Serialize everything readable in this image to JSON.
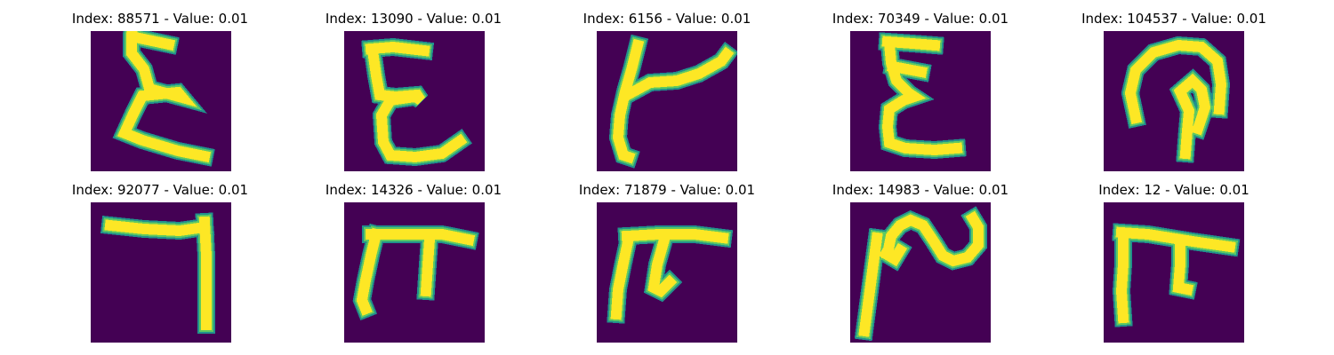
{
  "colors": {
    "background": "#440154",
    "edge": "#21918c",
    "mid": "#5ec962",
    "stroke": "#fde725"
  },
  "panels": [
    {
      "title": "Index: 88571 - Value: 0.01",
      "glyph": "epsilon-shape"
    },
    {
      "title": "Index: 13090 - Value: 0.01",
      "glyph": "epsilon-shape"
    },
    {
      "title": "Index: 6156 - Value: 0.01",
      "glyph": "k-like-shape"
    },
    {
      "title": "Index: 70349 - Value: 0.01",
      "glyph": "epsilon-shape"
    },
    {
      "title": "Index: 104537 - Value: 0.01",
      "glyph": "loop-shape"
    },
    {
      "title": "Index: 92077 - Value: 0.01",
      "glyph": "hook-shape"
    },
    {
      "title": "Index: 14326 - Value: 0.01",
      "glyph": "pi-shape"
    },
    {
      "title": "Index: 71879 - Value: 0.01",
      "glyph": "pi-shape"
    },
    {
      "title": "Index: 14983 - Value: 0.01",
      "glyph": "wave-shape"
    },
    {
      "title": "Index: 12 - Value: 0.01",
      "glyph": "pi-shape"
    }
  ]
}
